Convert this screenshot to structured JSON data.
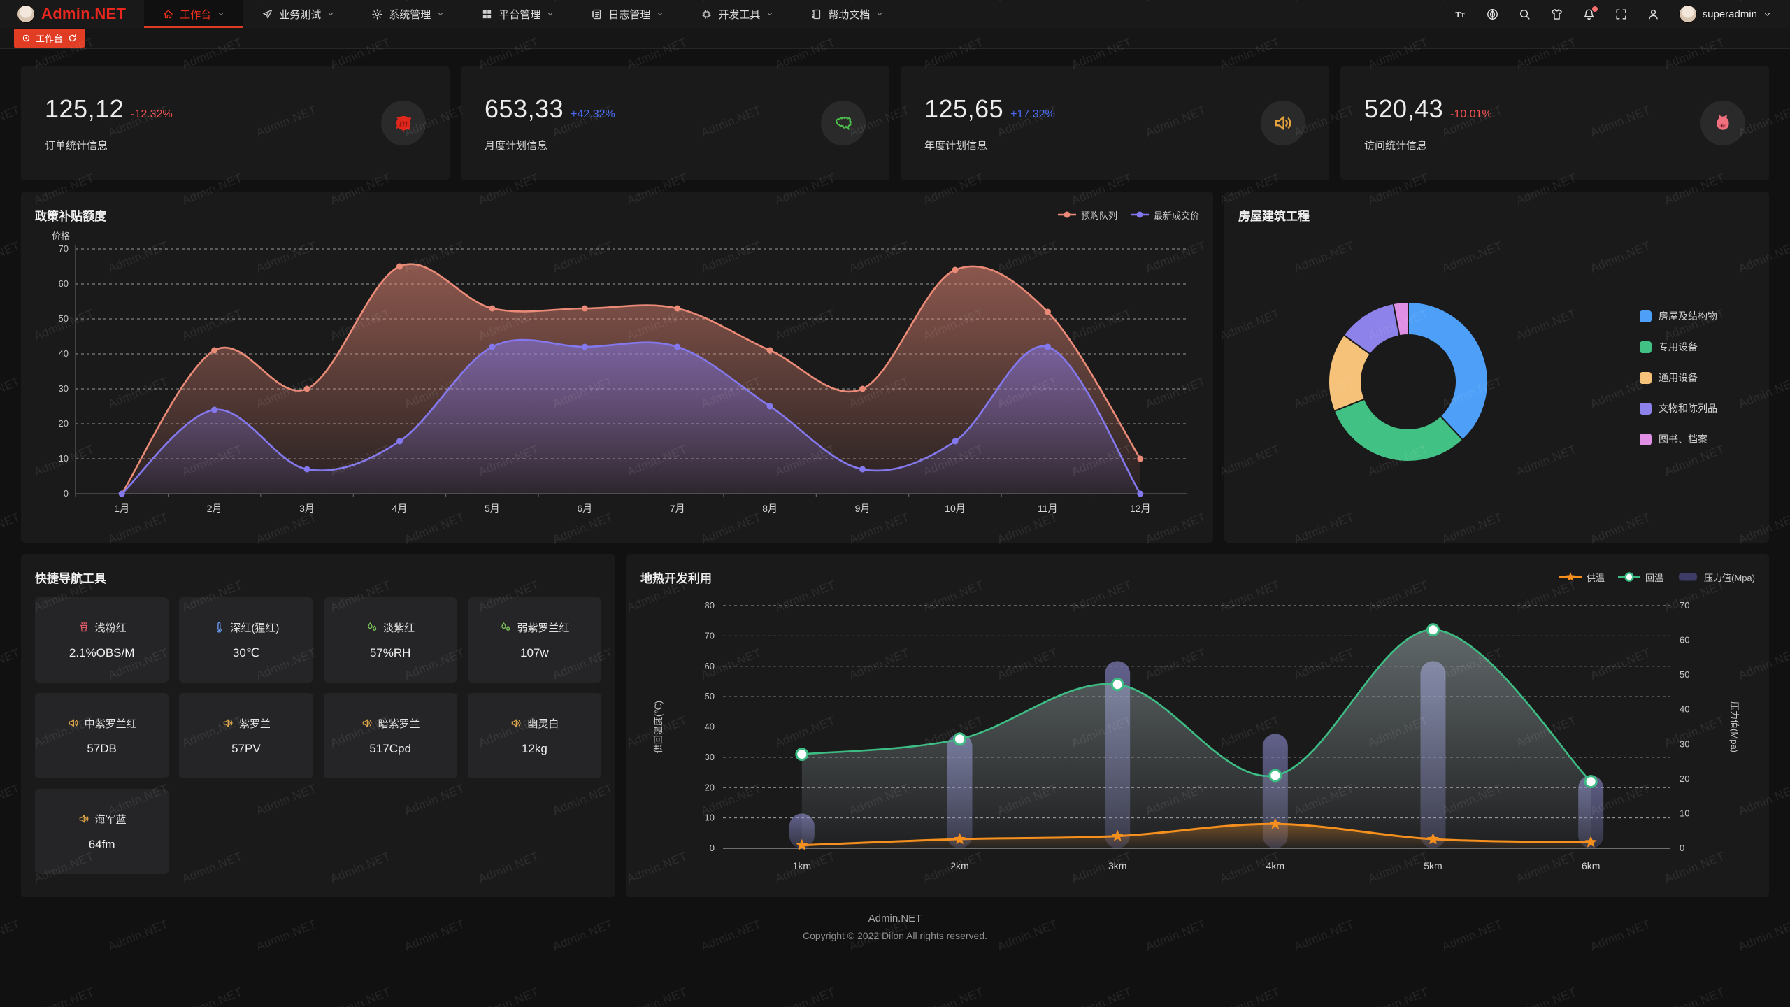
{
  "app": {
    "name": "Admin.NET"
  },
  "watermark": "Admin.NET",
  "header": {
    "menu": [
      {
        "label": "工作台",
        "icon": "home-icon",
        "active": true
      },
      {
        "label": "业务测试",
        "icon": "send-icon",
        "active": false
      },
      {
        "label": "系统管理",
        "icon": "gear-icon",
        "active": false
      },
      {
        "label": "平台管理",
        "icon": "grid-icon",
        "active": false
      },
      {
        "label": "日志管理",
        "icon": "log-icon",
        "active": false
      },
      {
        "label": "开发工具",
        "icon": "chip-icon",
        "active": false
      },
      {
        "label": "帮助文档",
        "icon": "book-icon",
        "active": false
      }
    ],
    "controls": [
      {
        "icon": "font-size-icon",
        "badge": false
      },
      {
        "icon": "language-icon",
        "badge": false
      },
      {
        "icon": "search-icon",
        "badge": false
      },
      {
        "icon": "theme-icon",
        "badge": false
      },
      {
        "icon": "bell-icon",
        "badge": true
      },
      {
        "icon": "fullscreen-icon",
        "badge": false
      },
      {
        "icon": "profile-icon",
        "badge": false
      }
    ],
    "user": {
      "name": "superadmin"
    }
  },
  "tabs": [
    {
      "label": "工作台",
      "active": true
    }
  ],
  "stats": [
    {
      "value": "125,12",
      "delta": "-12.32%",
      "delta_color": "#f25050",
      "label": "订单统计信息",
      "icon": "meetup-icon"
    },
    {
      "value": "653,33",
      "delta": "+42.32%",
      "delta_color": "#4a6bf5",
      "label": "月度计划信息",
      "icon": "china-map-icon"
    },
    {
      "value": "125,65",
      "delta": "+17.32%",
      "delta_color": "#4a6bf5",
      "label": "年度计划信息",
      "icon": "speaker-icon"
    },
    {
      "value": "520,43",
      "delta": "-10.01%",
      "delta_color": "#f25050",
      "label": "访问统计信息",
      "icon": "cat-icon"
    }
  ],
  "chart_data": [
    {
      "type": "area",
      "title": "政策补贴额度",
      "ylabel": "价格",
      "ylim": [
        0,
        70
      ],
      "yticks": [
        0,
        10,
        20,
        30,
        40,
        50,
        60,
        70
      ],
      "grid": "dashed",
      "legend_position": "top-right",
      "categories": [
        "1月",
        "2月",
        "3月",
        "4月",
        "5月",
        "6月",
        "7月",
        "8月",
        "9月",
        "10月",
        "11月",
        "12月"
      ],
      "series": [
        {
          "name": "预购队列",
          "color": "#ea8a77",
          "values": [
            0,
            41,
            30,
            65,
            53,
            53,
            53,
            41,
            30,
            64,
            52,
            10
          ]
        },
        {
          "name": "最新成交价",
          "color": "#8478ee",
          "values": [
            0,
            24,
            7,
            15,
            42,
            42,
            42,
            25,
            7,
            15,
            42,
            0
          ]
        }
      ]
    },
    {
      "type": "pie",
      "title": "房屋建筑工程",
      "donut": true,
      "legend_position": "right",
      "slices": [
        {
          "name": "房屋及结构物",
          "value": 38,
          "color": "#4d9ff8"
        },
        {
          "name": "专用设备",
          "value": 31,
          "color": "#41c184"
        },
        {
          "name": "通用设备",
          "value": 16,
          "color": "#f6c178"
        },
        {
          "name": "文物和陈列品",
          "value": 12,
          "color": "#8d82ea"
        },
        {
          "name": "图书、档案",
          "value": 3,
          "color": "#df8fe4"
        }
      ]
    },
    {
      "type": "line+bar",
      "title": "地热开发利用",
      "ylabel_left": "供回温度(℃)",
      "ylabel_right": "压力值(Mpa)",
      "ylim_left": [
        0,
        80
      ],
      "ylim_right": [
        0,
        70
      ],
      "yticks_left": [
        0,
        10,
        20,
        30,
        40,
        50,
        60,
        70,
        80
      ],
      "yticks_right": [
        0,
        10,
        20,
        30,
        40,
        50,
        60,
        70
      ],
      "grid": "dashed",
      "legend_position": "top-right",
      "categories": [
        "1km",
        "2km",
        "3km",
        "4km",
        "5km",
        "6km"
      ],
      "series": [
        {
          "name": "供温",
          "chart": "line",
          "marker": "star",
          "axis": "left",
          "color": "#f5901e",
          "values": [
            1,
            3,
            4,
            8,
            3,
            2
          ]
        },
        {
          "name": "回温",
          "chart": "line",
          "marker": "circle",
          "axis": "left",
          "color": "#3dbd84",
          "values": [
            31,
            36,
            54,
            24,
            72,
            22
          ]
        },
        {
          "name": "压力值(Mpa)",
          "chart": "bar",
          "axis": "right",
          "color": "#6a6aae",
          "values": [
            10,
            33,
            54,
            33,
            54,
            21
          ]
        }
      ]
    }
  ],
  "quick_nav": {
    "title": "快捷导航工具",
    "items": [
      {
        "icon": "brazier-icon",
        "icon_color": "#e05a68",
        "label": "浅粉红",
        "value": "2.1%OBS/M"
      },
      {
        "icon": "thermometer-icon",
        "icon_color": "#6b9bf7",
        "label": "深红(猩红)",
        "value": "30℃"
      },
      {
        "icon": "drops-icon",
        "icon_color": "#7cc35a",
        "label": "淡紫红",
        "value": "57%RH"
      },
      {
        "icon": "drops-icon",
        "icon_color": "#7cc35a",
        "label": "弱紫罗兰红",
        "value": "107w"
      },
      {
        "icon": "speaker-icon",
        "icon_color": "#d9a145",
        "label": "中紫罗兰红",
        "value": "57DB"
      },
      {
        "icon": "speaker-icon",
        "icon_color": "#d9a145",
        "label": "紫罗兰",
        "value": "57PV"
      },
      {
        "icon": "speaker-icon",
        "icon_color": "#d9a145",
        "label": "暗紫罗兰",
        "value": "517Cpd"
      },
      {
        "icon": "speaker-icon",
        "icon_color": "#d9a145",
        "label": "幽灵白",
        "value": "12kg"
      },
      {
        "icon": "speaker-icon",
        "icon_color": "#d9a145",
        "label": "海军蓝",
        "value": "64fm"
      }
    ]
  },
  "footer": {
    "line1": "Admin.NET",
    "line2": "Copyright © 2022 Dilon All rights reserved."
  }
}
